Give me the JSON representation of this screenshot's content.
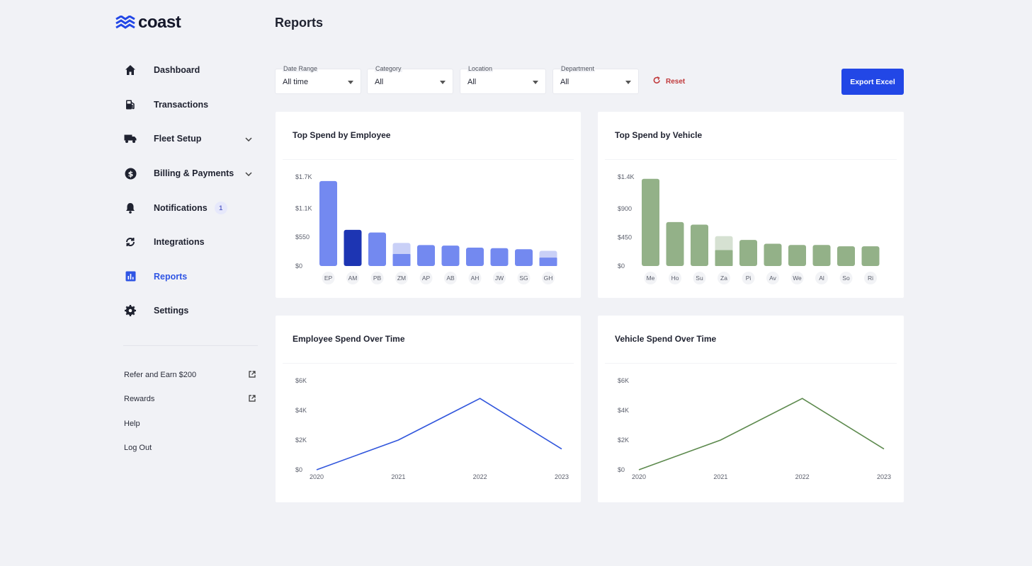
{
  "app": {
    "logo_text": "coast"
  },
  "sidebar": {
    "items": [
      {
        "label": "Dashboard",
        "icon": "home-icon"
      },
      {
        "label": "Transactions",
        "icon": "fuel-pump-icon"
      },
      {
        "label": "Fleet Setup",
        "icon": "truck-icon",
        "has_chevron": true
      },
      {
        "label": "Billing & Payments",
        "icon": "dollar-circle-icon",
        "has_chevron": true
      },
      {
        "label": "Notifications",
        "icon": "bell-icon",
        "badge": "1"
      },
      {
        "label": "Integrations",
        "icon": "sync-icon"
      },
      {
        "label": "Reports",
        "icon": "bar-chart-icon",
        "active": true
      },
      {
        "label": "Settings",
        "icon": "gear-icon"
      }
    ],
    "footer": [
      {
        "label": "Refer and Earn $200",
        "icon": "external-link-icon"
      },
      {
        "label": "Rewards",
        "icon": "external-link-icon"
      },
      {
        "label": "Help"
      },
      {
        "label": "Log Out"
      }
    ]
  },
  "header": {
    "title": "Reports"
  },
  "filters": [
    {
      "label": "Date Range",
      "value": "All time"
    },
    {
      "label": "Category",
      "value": "All"
    },
    {
      "label": "Location",
      "value": "All"
    },
    {
      "label": "Department",
      "value": "All"
    }
  ],
  "actions": {
    "reset_label": "Reset",
    "export_label": "Export Excel"
  },
  "colors": {
    "accent": "#2247e6",
    "active_nav": "#2f55e4",
    "employee_bar": "#7389f0",
    "employee_bar_highlight": "#1d35b3",
    "employee_bar_light": "#c9d0f7",
    "vehicle_bar": "#93b188",
    "vehicle_bar_light": "#d6e1d2",
    "employee_line": "#3156dc",
    "vehicle_line": "#5d8a4e"
  },
  "cards": {
    "top_employee": {
      "title": "Top Spend by Employee"
    },
    "top_vehicle": {
      "title": "Top Spend by Vehicle"
    },
    "employee_time": {
      "title": "Employee Spend Over Time"
    },
    "vehicle_time": {
      "title": "Vehicle Spend Over Time"
    }
  },
  "chart_data": [
    {
      "type": "bar",
      "title": "Top Spend by Employee",
      "categories": [
        "EP",
        "AM",
        "PB",
        "ZM",
        "AP",
        "AB",
        "AH",
        "JW",
        "SG",
        "GH"
      ],
      "values": [
        1620,
        690,
        640,
        440,
        400,
        390,
        350,
        340,
        320,
        290
      ],
      "segment_split": [
        null,
        null,
        null,
        230,
        null,
        null,
        null,
        null,
        null,
        160
      ],
      "highlighted_index": 1,
      "y_ticks": [
        "$0",
        "$550",
        "$1.1K",
        "$1.7K"
      ],
      "y_tick_values": [
        0,
        550,
        1100,
        1700
      ],
      "ylim": [
        0,
        1700
      ]
    },
    {
      "type": "bar",
      "title": "Top Spend by Vehicle",
      "categories": [
        "Me",
        "Ho",
        "Su",
        "Za",
        "Pi",
        "Av",
        "We",
        "Al",
        "So",
        "Ri"
      ],
      "values": [
        1370,
        690,
        650,
        470,
        410,
        350,
        330,
        330,
        310,
        310
      ],
      "segment_split": [
        null,
        null,
        null,
        250,
        null,
        null,
        null,
        null,
        null,
        null
      ],
      "y_ticks": [
        "$0",
        "$450",
        "$900",
        "$1.4K"
      ],
      "y_tick_values": [
        0,
        450,
        900,
        1400
      ],
      "ylim": [
        0,
        1400
      ]
    },
    {
      "type": "line",
      "title": "Employee Spend Over Time",
      "x": [
        "2020",
        "2021",
        "2022",
        "2023"
      ],
      "values": [
        0,
        2000,
        4800,
        1400
      ],
      "y_ticks": [
        "$0",
        "$2K",
        "$4K",
        "$6K"
      ],
      "y_tick_values": [
        0,
        2000,
        4000,
        6000
      ],
      "ylim": [
        0,
        6000
      ]
    },
    {
      "type": "line",
      "title": "Vehicle Spend Over Time",
      "x": [
        "2020",
        "2021",
        "2022",
        "2023"
      ],
      "values": [
        0,
        2000,
        4800,
        1400
      ],
      "y_ticks": [
        "$0",
        "$2K",
        "$4K",
        "$6K"
      ],
      "y_tick_values": [
        0,
        2000,
        4000,
        6000
      ],
      "ylim": [
        0,
        6000
      ]
    }
  ]
}
